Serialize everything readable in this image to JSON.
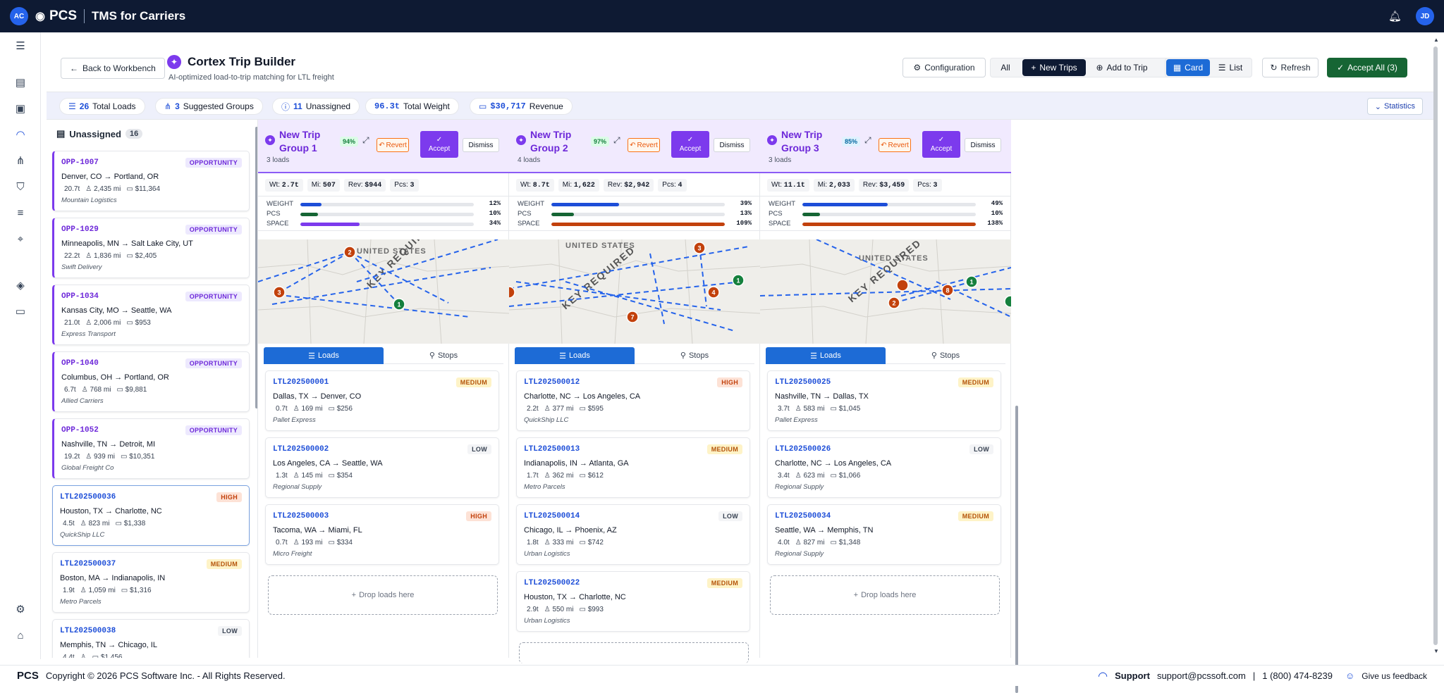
{
  "topbar": {
    "avatar_left": "AC",
    "brand": "PCS",
    "product": "TMS for Carriers",
    "avatar_right": "JD"
  },
  "header": {
    "back": "Back to Workbench",
    "title": "Cortex Trip Builder",
    "subtitle": "AI-optimized load-to-trip matching for LTL freight",
    "configuration": "Configuration",
    "filter_all": "All",
    "new_trips": "New Trips",
    "add_to_trip": "Add to Trip",
    "card": "Card",
    "list": "List",
    "refresh": "Refresh",
    "accept_all": "Accept All (3)"
  },
  "stats": {
    "total_loads_val": "26",
    "total_loads_lbl": "Total Loads",
    "groups_val": "3",
    "groups_lbl": "Suggested Groups",
    "unassigned_val": "11",
    "unassigned_lbl": "Unassigned",
    "weight_val": "96.3t",
    "weight_lbl": "Total Weight",
    "revenue_val": "$30,717",
    "revenue_lbl": "Revenue",
    "statistics": "Statistics"
  },
  "unassigned": {
    "title": "Unassigned",
    "count": "16",
    "cards": [
      {
        "id": "OPP-1007",
        "badge": "OPPORTUNITY",
        "from": "Denver, CO",
        "to": "Portland, OR",
        "wt": "20.7t",
        "mi": "2,435 mi",
        "rev": "$11,364",
        "carrier": "Mountain Logistics"
      },
      {
        "id": "OPP-1029",
        "badge": "OPPORTUNITY",
        "from": "Minneapolis, MN",
        "to": "Salt Lake City, UT",
        "wt": "22.2t",
        "mi": "1,836 mi",
        "rev": "$2,405",
        "carrier": "Swift Delivery"
      },
      {
        "id": "OPP-1034",
        "badge": "OPPORTUNITY",
        "from": "Kansas City, MO",
        "to": "Seattle, WA",
        "wt": "21.0t",
        "mi": "2,006 mi",
        "rev": "$953",
        "carrier": "Express Transport"
      },
      {
        "id": "OPP-1040",
        "badge": "OPPORTUNITY",
        "from": "Columbus, OH",
        "to": "Portland, OR",
        "wt": "6.7t",
        "mi": "768 mi",
        "rev": "$9,881",
        "carrier": "Allied Carriers"
      },
      {
        "id": "OPP-1052",
        "badge": "OPPORTUNITY",
        "from": "Nashville, TN",
        "to": "Detroit, MI",
        "wt": "19.2t",
        "mi": "939 mi",
        "rev": "$10,351",
        "carrier": "Global Freight Co"
      },
      {
        "id": "LTL202500036",
        "badge": "HIGH",
        "from": "Houston, TX",
        "to": "Charlotte, NC",
        "wt": "4.5t",
        "mi": "823 mi",
        "rev": "$1,338",
        "carrier": "QuickShip LLC"
      },
      {
        "id": "LTL202500037",
        "badge": "MEDIUM",
        "from": "Boston, MA",
        "to": "Indianapolis, IN",
        "wt": "1.9t",
        "mi": "1,059 mi",
        "rev": "$1,316",
        "carrier": "Metro Parcels"
      },
      {
        "id": "LTL202500038",
        "badge": "LOW",
        "from": "Memphis, TN",
        "to": "Chicago, IL",
        "wt": "4.4t",
        "mi": "",
        "rev": "$1,456",
        "carrier": ""
      }
    ]
  },
  "groups": [
    {
      "title1": "New Trip",
      "title2": "Group 1",
      "loads": "3 loads",
      "pct": "94%",
      "revert": "Revert",
      "accept": "Accept",
      "dismiss": "Dismiss",
      "wt": "2.7t",
      "mi": "507",
      "rev": "$944",
      "pcs": "3",
      "weight_pct": "12%",
      "pcs_pct": "10%",
      "space_pct": "34%",
      "weight_frac": 0.12,
      "pcs_frac": 0.1,
      "space_frac": 0.34,
      "map_label": "UNITED STATES",
      "map_key": "KEY REQUIRED",
      "tab_loads": "Loads",
      "tab_stops": "Stops",
      "drop": "Drop loads here",
      "cards": [
        {
          "id": "LTL202500001",
          "badge": "MEDIUM",
          "from": "Dallas, TX",
          "to": "Denver, CO",
          "wt": "0.7t",
          "mi": "169 mi",
          "rev": "$256",
          "carrier": "Pallet Express"
        },
        {
          "id": "LTL202500002",
          "badge": "LOW",
          "from": "Los Angeles, CA",
          "to": "Seattle, WA",
          "wt": "1.3t",
          "mi": "145 mi",
          "rev": "$354",
          "carrier": "Regional Supply"
        },
        {
          "id": "LTL202500003",
          "badge": "HIGH",
          "from": "Tacoma, WA",
          "to": "Miami, FL",
          "wt": "0.7t",
          "mi": "193 mi",
          "rev": "$334",
          "carrier": "Micro Freight"
        }
      ]
    },
    {
      "title1": "New Trip",
      "title2": "Group 2",
      "loads": "4 loads",
      "pct": "97%",
      "revert": "Revert",
      "accept": "Accept",
      "dismiss": "Dismiss",
      "wt": "8.7t",
      "mi": "1,622",
      "rev": "$2,942",
      "pcs": "4",
      "weight_pct": "39%",
      "pcs_pct": "13%",
      "space_pct": "109%",
      "weight_frac": 0.39,
      "pcs_frac": 0.13,
      "space_frac": 1.0,
      "map_label": "UNITED STATES",
      "map_key": "KEY REQUIRED",
      "tab_loads": "Loads",
      "tab_stops": "Stops",
      "drop": "",
      "cards": [
        {
          "id": "LTL202500012",
          "badge": "HIGH",
          "from": "Charlotte, NC",
          "to": "Los Angeles, CA",
          "wt": "2.2t",
          "mi": "377 mi",
          "rev": "$595",
          "carrier": "QuickShip LLC"
        },
        {
          "id": "LTL202500013",
          "badge": "MEDIUM",
          "from": "Indianapolis, IN",
          "to": "Atlanta, GA",
          "wt": "1.7t",
          "mi": "362 mi",
          "rev": "$612",
          "carrier": "Metro Parcels"
        },
        {
          "id": "LTL202500014",
          "badge": "LOW",
          "from": "Chicago, IL",
          "to": "Phoenix, AZ",
          "wt": "1.8t",
          "mi": "333 mi",
          "rev": "$742",
          "carrier": "Urban Logistics"
        },
        {
          "id": "LTL202500022",
          "badge": "MEDIUM",
          "from": "Houston, TX",
          "to": "Charlotte, NC",
          "wt": "2.9t",
          "mi": "550 mi",
          "rev": "$993",
          "carrier": "Urban Logistics"
        }
      ]
    },
    {
      "title1": "New Trip",
      "title2": "Group 3",
      "loads": "3 loads",
      "pct": "85%",
      "revert": "Revert",
      "accept": "Accept",
      "dismiss": "Dismiss",
      "wt": "11.1t",
      "mi": "2,033",
      "rev": "$3,459",
      "pcs": "3",
      "weight_pct": "49%",
      "pcs_pct": "10%",
      "space_pct": "138%",
      "weight_frac": 0.49,
      "pcs_frac": 0.1,
      "space_frac": 1.0,
      "map_label": "UNITED STATES",
      "map_key": "KEY REQUIRED",
      "tab_loads": "Loads",
      "tab_stops": "Stops",
      "drop": "Drop loads here",
      "cards": [
        {
          "id": "LTL202500025",
          "badge": "MEDIUM",
          "from": "Nashville, TN",
          "to": "Dallas, TX",
          "wt": "3.7t",
          "mi": "583 mi",
          "rev": "$1,045",
          "carrier": "Pallet Express"
        },
        {
          "id": "LTL202500026",
          "badge": "LOW",
          "from": "Charlotte, NC",
          "to": "Los Angeles, CA",
          "wt": "3.4t",
          "mi": "623 mi",
          "rev": "$1,066",
          "carrier": "Regional Supply"
        },
        {
          "id": "LTL202500034",
          "badge": "MEDIUM",
          "from": "Seattle, WA",
          "to": "Memphis, TN",
          "wt": "4.0t",
          "mi": "827 mi",
          "rev": "$1,348",
          "carrier": "Regional Supply"
        }
      ]
    }
  ],
  "footer": {
    "brand": "PCS",
    "copyright": "Copyright © 2026 PCS Software Inc. - All Rights Reserved.",
    "support": "Support",
    "email": "support@pcssoft.com",
    "phone": "1 (800) 474-8239",
    "feedback": "Give us feedback"
  },
  "colors": {
    "accent": "#7c3aed",
    "primary": "#1d6bd6",
    "nav": "#0e1a33",
    "success": "#166534"
  }
}
